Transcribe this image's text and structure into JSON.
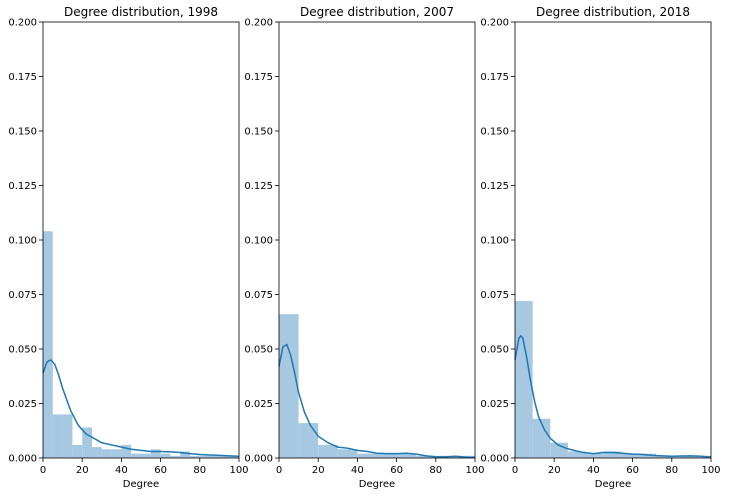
{
  "chart_data": [
    {
      "type": "bar",
      "title": "Degree distribution, 1998",
      "xlabel": "Degree",
      "ylabel": "",
      "xlim": [
        0,
        100
      ],
      "ylim": [
        0,
        0.2
      ],
      "xticks": [
        "0",
        "20",
        "40",
        "60",
        "80",
        "100"
      ],
      "yticks": [
        "0.000",
        "0.025",
        "0.050",
        "0.075",
        "0.100",
        "0.125",
        "0.150",
        "0.175",
        "0.200"
      ],
      "grid": false,
      "histogram": {
        "bins": [
          [
            0,
            5
          ],
          [
            5,
            10
          ],
          [
            10,
            15
          ],
          [
            15,
            20
          ],
          [
            20,
            25
          ],
          [
            25,
            30
          ],
          [
            30,
            35
          ],
          [
            35,
            40
          ],
          [
            40,
            45
          ],
          [
            45,
            50
          ],
          [
            50,
            55
          ],
          [
            55,
            60
          ],
          [
            60,
            65
          ],
          [
            65,
            70
          ],
          [
            70,
            75
          ],
          [
            75,
            80
          ],
          [
            80,
            85
          ],
          [
            85,
            90
          ],
          [
            90,
            95
          ],
          [
            95,
            100
          ]
        ],
        "values": [
          0.104,
          0.02,
          0.02,
          0.006,
          0.014,
          0.005,
          0.004,
          0.004,
          0.006,
          0.002,
          0.002,
          0.004,
          0.002,
          0.001,
          0.003,
          0.001,
          0.001,
          0.001,
          0.001,
          0.001
        ]
      },
      "kde": {
        "x": [
          0,
          2,
          4,
          6,
          8,
          10,
          14,
          18,
          22,
          26,
          30,
          35,
          40,
          45,
          50,
          55,
          60,
          65,
          70,
          75,
          80,
          85,
          90,
          95,
          100
        ],
        "y": [
          0.039,
          0.044,
          0.045,
          0.043,
          0.038,
          0.032,
          0.022,
          0.015,
          0.011,
          0.009,
          0.007,
          0.006,
          0.005,
          0.004,
          0.0035,
          0.003,
          0.003,
          0.0028,
          0.0025,
          0.002,
          0.0016,
          0.0014,
          0.0012,
          0.001,
          0.0008
        ]
      }
    },
    {
      "type": "bar",
      "title": "Degree distribution, 2007",
      "xlabel": "Degree",
      "ylabel": "",
      "xlim": [
        0,
        100
      ],
      "ylim": [
        0,
        0.2
      ],
      "xticks": [
        "0",
        "20",
        "40",
        "60",
        "80",
        "100"
      ],
      "yticks": [
        "0.000",
        "0.025",
        "0.050",
        "0.075",
        "0.100",
        "0.125",
        "0.150",
        "0.175",
        "0.200"
      ],
      "grid": false,
      "histogram": {
        "bins": [
          [
            0,
            10
          ],
          [
            10,
            20
          ],
          [
            20,
            30
          ],
          [
            30,
            40
          ],
          [
            40,
            50
          ],
          [
            50,
            60
          ],
          [
            60,
            70
          ],
          [
            70,
            80
          ],
          [
            80,
            90
          ],
          [
            90,
            100
          ]
        ],
        "values": [
          0.066,
          0.016,
          0.006,
          0.004,
          0.002,
          0.002,
          0.002,
          0.001,
          0.001,
          0.001
        ]
      },
      "kde": {
        "x": [
          0,
          2,
          4,
          6,
          8,
          10,
          13,
          16,
          20,
          25,
          30,
          35,
          40,
          45,
          50,
          55,
          60,
          65,
          70,
          75,
          80,
          85,
          90,
          95,
          100
        ],
        "y": [
          0.042,
          0.051,
          0.052,
          0.047,
          0.039,
          0.03,
          0.021,
          0.015,
          0.01,
          0.007,
          0.005,
          0.0045,
          0.0035,
          0.003,
          0.0022,
          0.002,
          0.002,
          0.0022,
          0.0018,
          0.001,
          0.0006,
          0.0005,
          0.0008,
          0.0004,
          0.0002
        ]
      }
    },
    {
      "type": "bar",
      "title": "Degree distribution, 2018",
      "xlabel": "Degree",
      "ylabel": "",
      "xlim": [
        0,
        100
      ],
      "ylim": [
        0,
        0.2
      ],
      "xticks": [
        "0",
        "20",
        "40",
        "60",
        "80",
        "100"
      ],
      "yticks": [
        "0.000",
        "0.025",
        "0.050",
        "0.075",
        "0.100",
        "0.125",
        "0.150",
        "0.175",
        "0.200"
      ],
      "grid": false,
      "histogram": {
        "bins": [
          [
            0,
            9
          ],
          [
            9,
            18
          ],
          [
            18,
            27
          ],
          [
            27,
            36
          ],
          [
            36,
            45
          ],
          [
            45,
            54
          ],
          [
            54,
            63
          ],
          [
            63,
            72
          ],
          [
            72,
            81
          ],
          [
            81,
            90
          ],
          [
            90,
            100
          ]
        ],
        "values": [
          0.072,
          0.018,
          0.007,
          0.003,
          0.002,
          0.003,
          0.002,
          0.002,
          0.001,
          0.001,
          0.001
        ]
      },
      "kde": {
        "x": [
          0,
          1,
          2,
          3,
          4,
          6,
          8,
          10,
          12,
          15,
          18,
          22,
          26,
          30,
          35,
          40,
          45,
          50,
          55,
          60,
          65,
          70,
          75,
          80,
          85,
          90,
          95,
          100
        ],
        "y": [
          0.045,
          0.05,
          0.055,
          0.056,
          0.055,
          0.046,
          0.035,
          0.026,
          0.019,
          0.013,
          0.009,
          0.006,
          0.0045,
          0.0035,
          0.0025,
          0.002,
          0.0025,
          0.0025,
          0.0022,
          0.0018,
          0.0016,
          0.0012,
          0.001,
          0.0008,
          0.0009,
          0.001,
          0.0008,
          0.0004
        ]
      }
    }
  ],
  "colors": {
    "bar_fill": "#a6c8e0",
    "kde_line": "#1f77b4",
    "axis": "#000000"
  }
}
